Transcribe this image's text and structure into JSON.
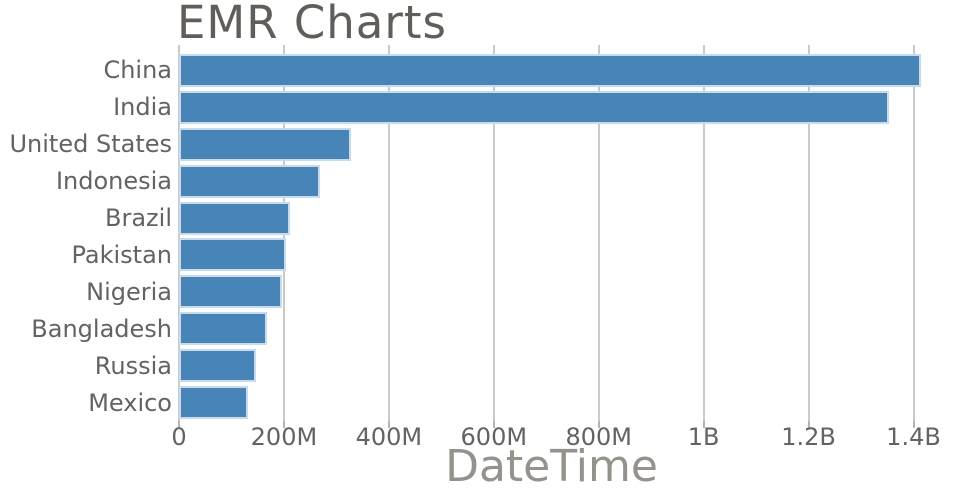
{
  "chart_data": {
    "type": "bar",
    "orientation": "horizontal",
    "title": "EMR Charts",
    "xlabel": "DateTime",
    "ylabel": "",
    "categories": [
      "China",
      "India",
      "United States",
      "Indonesia",
      "Brazil",
      "Pakistan",
      "Nigeria",
      "Bangladesh",
      "Russia",
      "Mexico"
    ],
    "values_millions": [
      1415,
      1353,
      328,
      268,
      212,
      203,
      197,
      167,
      146,
      132
    ],
    "x_ticks": [
      {
        "value_millions": 0,
        "label": "0"
      },
      {
        "value_millions": 200,
        "label": "200M"
      },
      {
        "value_millions": 400,
        "label": "400M"
      },
      {
        "value_millions": 600,
        "label": "600M"
      },
      {
        "value_millions": 800,
        "label": "800M"
      },
      {
        "value_millions": 1000,
        "label": "1B"
      },
      {
        "value_millions": 1200,
        "label": "1.2B"
      },
      {
        "value_millions": 1400,
        "label": "1.4B"
      }
    ],
    "xlim_millions": [
      0,
      1420
    ],
    "grid": "vertical-only",
    "legend": "none",
    "colors": {
      "bar_fill": "#4784b7",
      "bar_edge": "#c8dbed",
      "gridline": "#cacaca",
      "title_text": "#615d58",
      "axis_title_text": "#95918b",
      "tick_text": "#636363"
    }
  }
}
